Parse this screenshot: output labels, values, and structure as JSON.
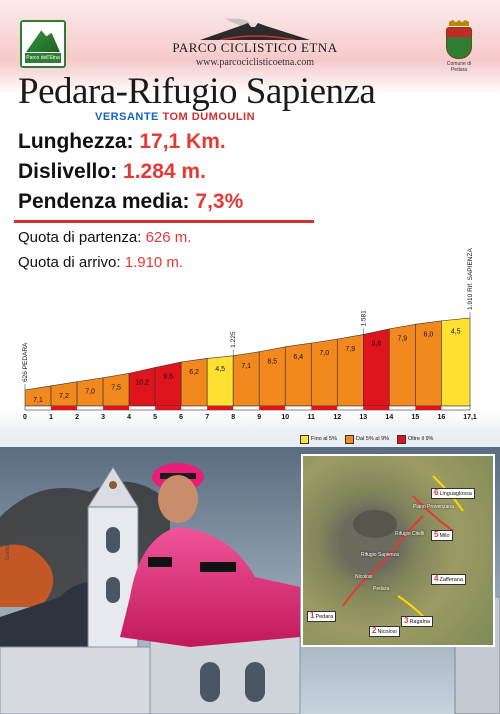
{
  "header": {
    "park_name": "PARCO CICLISTICO ETNA",
    "park_url": "www.parcociclisticoetna.com",
    "park_logo_text": "Parco dell'Etna",
    "municipality_crest_text": "Comune di Pedara"
  },
  "route": {
    "title": "Pedara-Rifugio Sapienza",
    "versante_label": "Versante",
    "rider": "Tom Dumoulin"
  },
  "stats": {
    "length_label": "Lunghezza:",
    "length_value": "17,1 Km.",
    "gain_label": "Dislivello:",
    "gain_value": "1.284 m.",
    "grade_label": "Pendenza media:",
    "grade_value": "7,3%",
    "start_label": "Quota di partenza:",
    "start_value": "626 m.",
    "end_label": "Quota di arrivo:",
    "end_value": "1.910 m."
  },
  "chart_data": {
    "type": "area",
    "title": "",
    "xlabel": "",
    "ylabel": "",
    "x_ticks": [
      "0",
      "1",
      "2",
      "3",
      "4",
      "5",
      "6",
      "7",
      "8",
      "9",
      "10",
      "11",
      "12",
      "13",
      "14",
      "15",
      "16",
      "17,1"
    ],
    "segment_grades": [
      7.1,
      7.2,
      7.0,
      7.5,
      10.2,
      9.6,
      6.2,
      4.5,
      7.1,
      8.5,
      6.4,
      7.0,
      7.9,
      9.8,
      7.9,
      6.0,
      4.5
    ],
    "segment_grade_labels": [
      "7,1",
      "7,2",
      "7,0",
      "7,5",
      "10,2",
      "9,6",
      "6,2",
      "4,5",
      "7,1",
      "8,5",
      "6,4",
      "7,0",
      "7,9",
      "9,8",
      "7,9",
      "6,0",
      "4,5"
    ],
    "segment_classes": [
      "orange",
      "orange",
      "orange",
      "orange",
      "red",
      "red",
      "orange",
      "yellow",
      "orange",
      "orange",
      "orange",
      "orange",
      "orange",
      "red",
      "orange",
      "orange",
      "yellow"
    ],
    "altitude_labels": [
      {
        "km": 0,
        "text": "626 PEDARA"
      },
      {
        "km": 8,
        "text": "1.225"
      },
      {
        "km": 13,
        "text": "1.581"
      },
      {
        "km": 17.1,
        "text": "1.910 Rif. SAPIENZA"
      }
    ],
    "start_altitude_m": 626,
    "end_altitude_m": 1910,
    "legend_position": "bottom-right",
    "legend": [
      {
        "label": "Fino al 5%",
        "color": "#ffe033"
      },
      {
        "label": "Dal 5% al 9%",
        "color": "#f2891f"
      },
      {
        "label": "Oltre il 9%",
        "color": "#e0141c"
      }
    ],
    "colors": {
      "yellow": "#ffe033",
      "orange": "#f2891f",
      "red": "#e0141c"
    }
  },
  "photo_credit": "Grafica di Sandro Ruè",
  "map": {
    "places": [
      "Pedara",
      "Nicolosi",
      "Rifugio Sapienza",
      "Piano Provenzana",
      "Rifugio Citelli"
    ],
    "start_points": [
      {
        "num": "1",
        "name": "Pedara"
      },
      {
        "num": "2",
        "name": "Nicolosi"
      },
      {
        "num": "3",
        "name": "Ragalna"
      },
      {
        "num": "4",
        "name": "Zafferana"
      },
      {
        "num": "5",
        "name": "Milo"
      },
      {
        "num": "6",
        "name": "Linguaglossa"
      }
    ]
  }
}
